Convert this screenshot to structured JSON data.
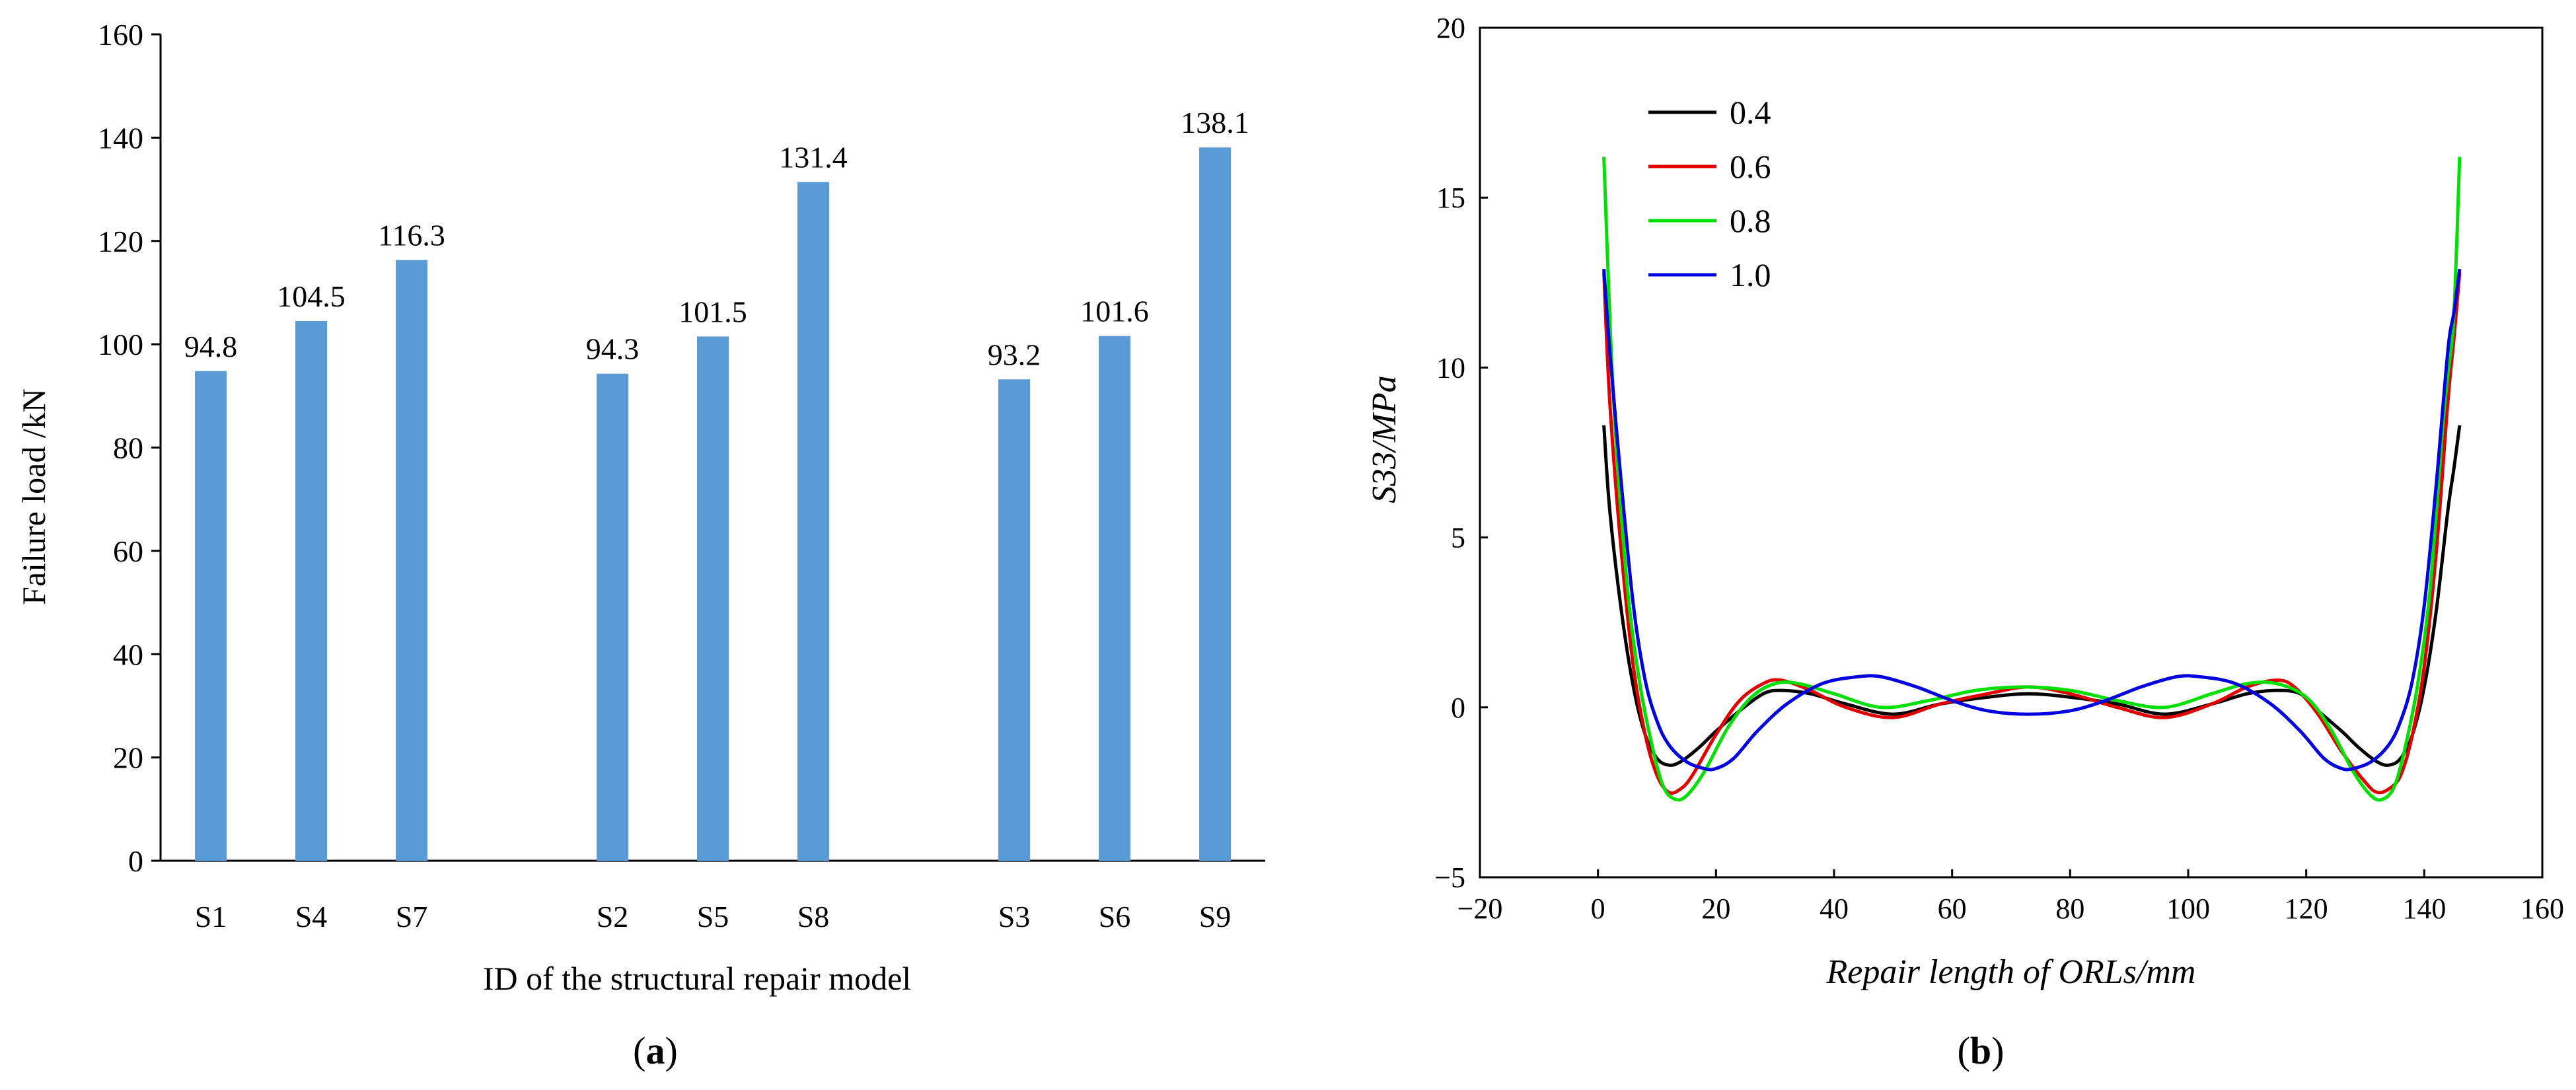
{
  "chart_data": [
    {
      "type": "bar",
      "panel_label": "(a)",
      "panel_letter": "a",
      "title": "",
      "xlabel": "ID of the structural repair model",
      "ylabel": "Failure load /kN",
      "ylim": [
        0,
        160
      ],
      "yticks": [
        "0",
        "20",
        "40",
        "60",
        "80",
        "100",
        "120",
        "140",
        "160"
      ],
      "groups": [
        {
          "categories": [
            "S1",
            "S4",
            "S7"
          ],
          "values": [
            94.8,
            104.5,
            116.3
          ],
          "labels": [
            "94.8",
            "104.5",
            "116.3"
          ]
        },
        {
          "categories": [
            "S2",
            "S5",
            "S8"
          ],
          "values": [
            94.3,
            101.5,
            131.4
          ],
          "labels": [
            "94.3",
            "101.5",
            "131.4"
          ]
        },
        {
          "categories": [
            "S3",
            "S6",
            "S9"
          ],
          "values": [
            93.2,
            101.6,
            138.1
          ],
          "labels": [
            "93.2",
            "101.6",
            "138.1"
          ]
        }
      ],
      "bar_color": "#5b9bd5",
      "grid": false
    },
    {
      "type": "line",
      "panel_label": "(b)",
      "panel_letter": "b",
      "title": "",
      "xlabel": "Repair length of ORLs/mm",
      "ylabel": "S33/MPa",
      "xlim": [
        -20,
        160
      ],
      "ylim": [
        -5,
        20
      ],
      "xticks": [
        "−20",
        "0",
        "20",
        "40",
        "60",
        "80",
        "100",
        "120",
        "140",
        "160"
      ],
      "yticks": [
        "−5",
        "0",
        "5",
        "10",
        "15",
        "20"
      ],
      "legend_position": "top-left",
      "grid": false,
      "series": [
        {
          "name": "0.4",
          "color": "#000000",
          "x": [
            1,
            2,
            4,
            6,
            8,
            10,
            12,
            14,
            17,
            20,
            24,
            28,
            31,
            36,
            42,
            50,
            58,
            66,
            73,
            80,
            88,
            96,
            104,
            110,
            115,
            119,
            122,
            126,
            129,
            132,
            134,
            136,
            138,
            140,
            142,
            144,
            145,
            146
          ],
          "y": [
            8.3,
            5.8,
            2.8,
            0.6,
            -0.8,
            -1.5,
            -1.7,
            -1.6,
            -1.2,
            -0.7,
            -0.1,
            0.4,
            0.5,
            0.4,
            0.1,
            -0.2,
            0.1,
            0.3,
            0.4,
            0.3,
            0.1,
            -0.2,
            0.1,
            0.4,
            0.5,
            0.4,
            -0.1,
            -0.7,
            -1.2,
            -1.6,
            -1.7,
            -1.5,
            -0.8,
            0.6,
            2.8,
            5.8,
            7.0,
            8.3
          ]
        },
        {
          "name": "0.6",
          "color": "#e00000",
          "x": [
            1,
            2,
            4,
            6,
            8,
            10,
            12,
            14,
            16,
            20,
            24,
            28,
            31,
            36,
            42,
            50,
            58,
            66,
            73,
            80,
            88,
            96,
            104,
            110,
            115,
            118,
            122,
            126,
            130,
            132,
            134,
            136,
            138,
            140,
            142,
            144,
            145,
            146
          ],
          "y": [
            12.8,
            9.0,
            4.5,
            1.2,
            -0.8,
            -2.0,
            -2.5,
            -2.4,
            -2.0,
            -0.8,
            0.2,
            0.7,
            0.8,
            0.5,
            0.0,
            -0.3,
            0.1,
            0.4,
            0.6,
            0.4,
            0.0,
            -0.3,
            0.1,
            0.6,
            0.8,
            0.6,
            -0.2,
            -1.3,
            -2.2,
            -2.5,
            -2.4,
            -2.0,
            -0.8,
            1.2,
            4.5,
            9.0,
            10.8,
            12.8
          ]
        },
        {
          "name": "0.8",
          "color": "#00e000",
          "x": [
            1,
            2,
            3,
            5,
            7,
            9,
            11,
            13,
            15,
            18,
            22,
            26,
            30,
            34,
            40,
            48,
            56,
            64,
            72,
            80,
            88,
            96,
            104,
            110,
            115,
            120,
            124,
            128,
            131,
            133,
            135,
            137,
            139,
            141,
            143,
            144,
            145,
            146
          ],
          "y": [
            16.2,
            11.5,
            8.0,
            3.5,
            0.8,
            -1.0,
            -2.3,
            -2.7,
            -2.6,
            -1.9,
            -0.6,
            0.3,
            0.7,
            0.7,
            0.4,
            0.0,
            0.2,
            0.5,
            0.6,
            0.5,
            0.2,
            0.0,
            0.4,
            0.7,
            0.7,
            0.3,
            -0.6,
            -1.9,
            -2.6,
            -2.7,
            -2.3,
            -1.0,
            0.8,
            3.5,
            8.0,
            9.8,
            11.5,
            16.2
          ]
        },
        {
          "name": "1.0",
          "color": "#0000e0",
          "x": [
            1,
            2,
            4,
            6,
            8,
            10,
            12,
            15,
            18,
            20,
            23,
            27,
            32,
            38,
            44,
            48,
            54,
            60,
            66,
            73,
            80,
            86,
            92,
            98,
            102,
            108,
            114,
            119,
            123,
            126,
            128,
            131,
            134,
            136,
            138,
            140,
            142,
            144,
            145,
            146
          ],
          "y": [
            12.9,
            10.5,
            6.5,
            3.0,
            0.8,
            -0.4,
            -1.1,
            -1.6,
            -1.8,
            -1.8,
            -1.5,
            -0.7,
            0.1,
            0.7,
            0.9,
            0.9,
            0.6,
            0.2,
            -0.1,
            -0.2,
            -0.1,
            0.2,
            0.6,
            0.9,
            0.9,
            0.7,
            0.1,
            -0.7,
            -1.5,
            -1.8,
            -1.8,
            -1.6,
            -1.1,
            -0.4,
            0.8,
            3.0,
            6.5,
            10.5,
            11.6,
            12.9
          ]
        }
      ]
    }
  ]
}
